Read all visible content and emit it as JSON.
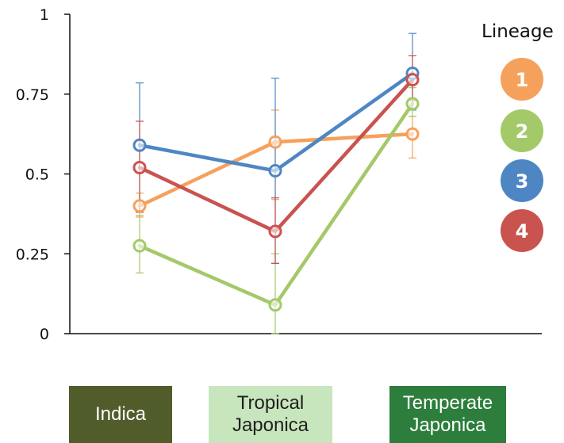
{
  "chart_data": {
    "type": "line",
    "categories": [
      "Indica",
      "Tropical Japonica",
      "Temperate Japonica"
    ],
    "category_lines": [
      [
        "Indica"
      ],
      [
        "Tropical",
        "Japonica"
      ],
      [
        "Temperate",
        "Japonica"
      ]
    ],
    "ylim": [
      0,
      1
    ],
    "yticks": [
      0,
      0.25,
      0.5,
      0.75,
      1
    ],
    "ytick_labels": [
      "0",
      "0.25",
      "0.5",
      "0.75",
      "1"
    ],
    "grid": false,
    "legend": {
      "title": "Lineage",
      "placement": "right"
    },
    "series": [
      {
        "name": "1",
        "color": "#f5a15c",
        "values": [
          0.4,
          0.6,
          0.625
        ],
        "err_low": [
          0.365,
          0.42,
          0.55
        ],
        "err_high": [
          0.44,
          0.7,
          0.68
        ]
      },
      {
        "name": "2",
        "color": "#a3c968",
        "values": [
          0.275,
          0.09,
          0.72
        ],
        "err_low": [
          0.19,
          0.0,
          0.68
        ],
        "err_high": [
          0.37,
          0.25,
          0.77
        ]
      },
      {
        "name": "3",
        "color": "#4e86c4",
        "values": [
          0.59,
          0.51,
          0.815
        ],
        "err_low": [
          0.38,
          0.22,
          0.7
        ],
        "err_high": [
          0.785,
          0.8,
          0.94
        ]
      },
      {
        "name": "4",
        "color": "#c9534f",
        "values": [
          0.52,
          0.32,
          0.795
        ],
        "err_low": [
          0.38,
          0.22,
          0.73
        ],
        "err_high": [
          0.665,
          0.425,
          0.87
        ]
      }
    ],
    "category_colors": [
      {
        "bg": "#505c2a",
        "fg": "#ffffff"
      },
      {
        "bg": "#c8e6bd",
        "fg": "#1e1e1e"
      },
      {
        "bg": "#2d7e3c",
        "fg": "#ffffff"
      }
    ]
  }
}
